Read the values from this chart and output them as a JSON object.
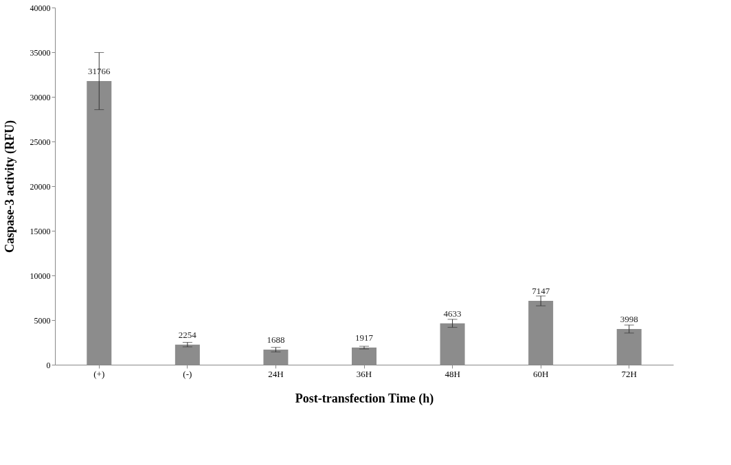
{
  "chart_data": {
    "type": "bar",
    "xlabel": "Post-transfection Time (h)",
    "ylabel": "Caspase-3 activity (RFU)",
    "categories": [
      "(+)",
      "(-)",
      "24H",
      "36H",
      "48H",
      "60H",
      "72H"
    ],
    "values": [
      31766,
      2254,
      1688,
      1917,
      4633,
      7147,
      3998
    ],
    "errors": [
      3200,
      250,
      250,
      150,
      450,
      550,
      450
    ],
    "color": "#8c8c8c",
    "data_labels": true,
    "ylim": [
      0,
      40000
    ],
    "yticks": [
      0,
      5000,
      10000,
      15000,
      20000,
      25000,
      30000,
      35000,
      40000
    ],
    "grid": false
  }
}
